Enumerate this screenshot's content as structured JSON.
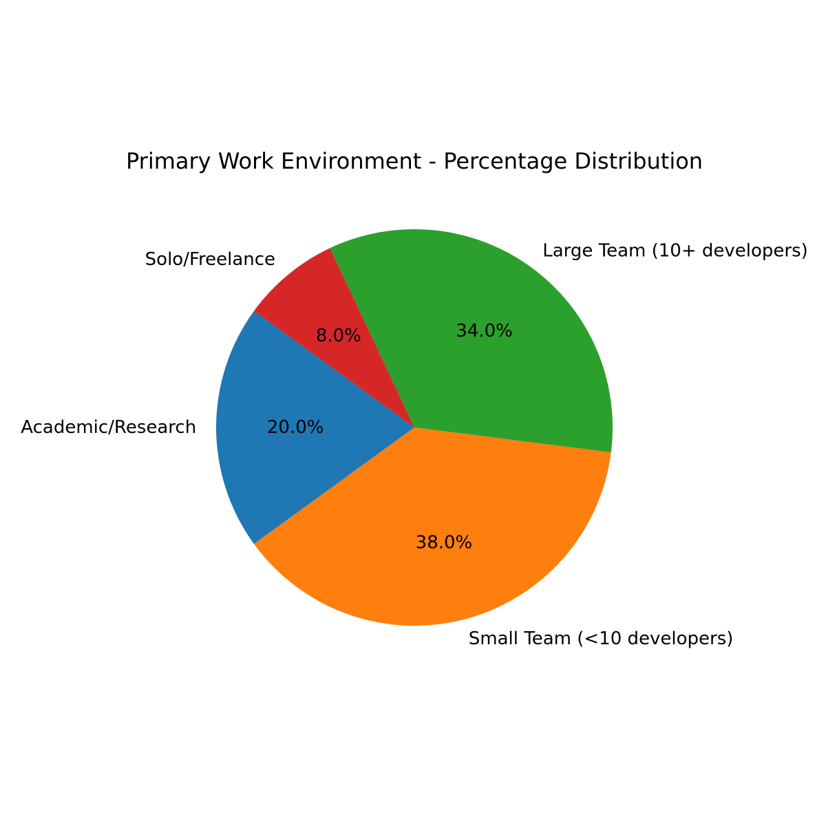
{
  "chart_data": {
    "type": "pie",
    "title": "Primary Work Environment - Percentage Distribution",
    "categories": [
      "Academic/Research",
      "Small Team (<10 developers)",
      "Large Team (10+ developers)",
      "Solo/Freelance"
    ],
    "values": [
      20.0,
      38.0,
      34.0,
      8.0
    ],
    "percent_labels": [
      "20.0%",
      "38.0%",
      "34.0%",
      "8.0%"
    ],
    "colors": [
      "#1f77b4",
      "#ff7f0e",
      "#2ca02c",
      "#d62728"
    ],
    "start_angle_deg": 144,
    "direction": "counterclockwise",
    "legend": "none"
  }
}
